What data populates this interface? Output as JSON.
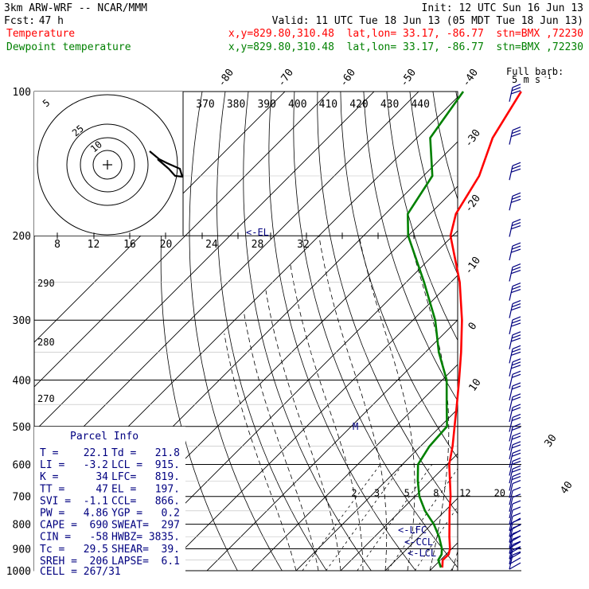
{
  "header": {
    "model": "3km ARW-WRF -- NCAR/MMM",
    "init": "Init: 12 UTC Sun 16 Jun 13",
    "fcst_label": "Fcst:",
    "fcst_value": "47 h",
    "valid": "Valid: 11 UTC Tue 18 Jun 13 (05 MDT Tue 18 Jun 13)",
    "temp_label": "Temperature",
    "dew_label": "Dewpoint temperature",
    "temp_info": "x,y=829.80,310.48  lat,lon= 33.17, -86.77  stn=BMX ,72230",
    "dew_info": "x,y=829.80,310.48  lat,lon= 33.17, -86.77  stn=BMX ,72230"
  },
  "barb_legend": {
    "title": "Full barb:",
    "value": "5 m s",
    "exp": "-1"
  },
  "hodograph": {
    "unit": "kts",
    "ring_labels": [
      "5",
      "25",
      "10"
    ]
  },
  "markers": {
    "el": "<-EL",
    "lfc": "<-LFC",
    "ccl": "<-CCL",
    "lcl": "<-LCL",
    "m": "M"
  },
  "parcel_info": {
    "title": "Parcel Info",
    "rows": [
      [
        "T  =",
        "22.1",
        "Td =",
        "21.8"
      ],
      [
        "LI =",
        "-3.2",
        "LCL =",
        "915."
      ],
      [
        "K  =",
        "34",
        "LFC=",
        "819."
      ],
      [
        "TT =",
        "47",
        "EL =",
        "197."
      ],
      [
        "SVI =",
        "-1.1",
        "CCL=",
        "866."
      ],
      [
        "PW =",
        "4.86",
        "YGP =",
        "0.2"
      ],
      [
        "CAPE =",
        "690",
        "SWEAT=",
        "297"
      ],
      [
        "CIN =",
        "-58",
        "HWBZ=",
        "3835."
      ],
      [
        "Tc =",
        "29.5",
        "SHEAR=",
        "39."
      ],
      [
        "SREH =",
        "206",
        "LAPSE=",
        "6.1"
      ]
    ],
    "cell": "CELL = 267/31"
  },
  "chart_data": {
    "type": "line",
    "pressure_levels": [
      100,
      200,
      300,
      400,
      500,
      600,
      700,
      800,
      900,
      1000
    ],
    "pressure_labels": [
      "100",
      "200",
      "300",
      "400",
      "500",
      "600",
      "700",
      "800",
      "900",
      "1000"
    ],
    "ylim": [
      100,
      1000
    ],
    "yscale": "log",
    "temperature_ticks": [
      "-80",
      "-70",
      "-60",
      "-50",
      "-40",
      "-30",
      "-20",
      "-10",
      "0",
      "10",
      "20",
      "30",
      "40"
    ],
    "theta_labels": [
      "370",
      "380",
      "390",
      "400",
      "410",
      "420",
      "430",
      "440"
    ],
    "mixing_ratio_labels": [
      "2",
      "3",
      "5",
      "8",
      "12",
      "20"
    ],
    "theta_side_labels": [
      "290",
      "280",
      "270"
    ],
    "hodo_speed_labels": [
      "8",
      "12",
      "16",
      "20",
      "24",
      "28",
      "32"
    ],
    "series": [
      {
        "name": "Temperature",
        "color": "#ff0000",
        "points": [
          [
            985,
            22.1
          ],
          [
            950,
            20.5
          ],
          [
            925,
            20.6
          ],
          [
            900,
            19.6
          ],
          [
            850,
            16.8
          ],
          [
            800,
            14.0
          ],
          [
            750,
            11.0
          ],
          [
            700,
            8.0
          ],
          [
            650,
            4.4
          ],
          [
            600,
            0.5
          ],
          [
            550,
            -2.8
          ],
          [
            500,
            -6.8
          ],
          [
            450,
            -11.2
          ],
          [
            400,
            -16.2
          ],
          [
            350,
            -22.0
          ],
          [
            300,
            -29.0
          ],
          [
            250,
            -38.0
          ],
          [
            200,
            -50.5
          ],
          [
            180,
            -54.2
          ],
          [
            150,
            -57.5
          ],
          [
            125,
            -63.0
          ],
          [
            100,
            -67.0
          ]
        ]
      },
      {
        "name": "Dewpoint temperature",
        "color": "#008000",
        "points": [
          [
            985,
            21.8
          ],
          [
            950,
            19.5
          ],
          [
            925,
            19.0
          ],
          [
            900,
            17.8
          ],
          [
            850,
            14.5
          ],
          [
            800,
            10.5
          ],
          [
            750,
            5.5
          ],
          [
            700,
            1.0
          ],
          [
            650,
            -2.8
          ],
          [
            600,
            -6.5
          ],
          [
            550,
            -8.0
          ],
          [
            500,
            -8.5
          ],
          [
            450,
            -13.5
          ],
          [
            400,
            -19.0
          ],
          [
            350,
            -27.0
          ],
          [
            300,
            -35.0
          ],
          [
            250,
            -46.0
          ],
          [
            200,
            -60.0
          ],
          [
            180,
            -65.0
          ],
          [
            150,
            -68.0
          ],
          [
            125,
            -77.0
          ],
          [
            100,
            -80.0
          ]
        ]
      }
    ],
    "wind_barb_count": 38
  }
}
